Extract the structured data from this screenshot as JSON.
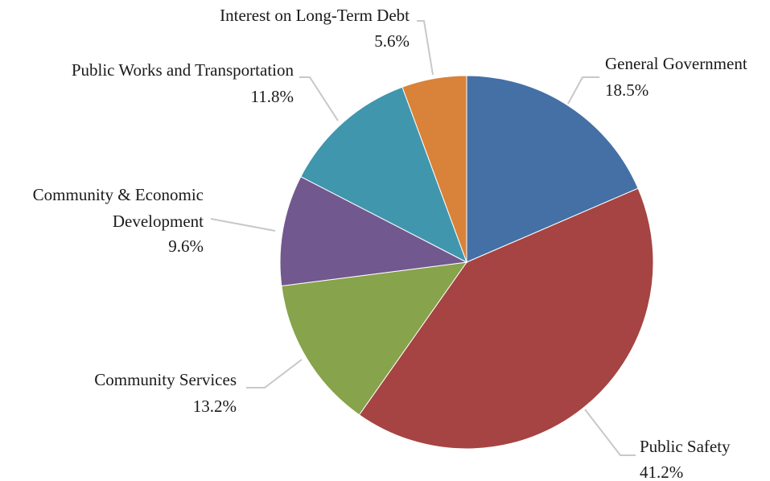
{
  "chart_data": {
    "type": "pie",
    "title": "",
    "slices": [
      {
        "label_lines": [
          "General Government"
        ],
        "value_label": "18.5%",
        "value": 18.5,
        "color": "#4470a5"
      },
      {
        "label_lines": [
          "Public Safety"
        ],
        "value_label": "41.2%",
        "value": 41.2,
        "color": "#a54442"
      },
      {
        "label_lines": [
          "Community Services"
        ],
        "value_label": "13.2%",
        "value": 13.2,
        "color": "#87a34b"
      },
      {
        "label_lines": [
          "Community & Economic",
          "Development"
        ],
        "value_label": "9.6%",
        "value": 9.6,
        "color": "#71588e"
      },
      {
        "label_lines": [
          "Public Works and Transportation"
        ],
        "value_label": "11.8%",
        "value": 11.8,
        "color": "#4096ad"
      },
      {
        "label_lines": [
          "Interest on Long-Term Debt"
        ],
        "value_label": "5.6%",
        "value": 5.6,
        "color": "#d98239"
      }
    ]
  }
}
